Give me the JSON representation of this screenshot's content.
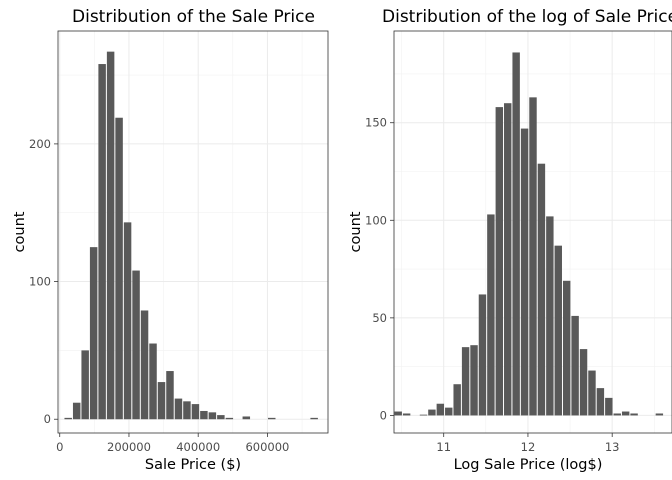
{
  "chart_data": [
    {
      "type": "bar",
      "title": "Distribution of the Sale Price",
      "xlabel": "Sale Price ($)",
      "ylabel": "count",
      "xlim": [
        -5000,
        775000
      ],
      "ylim": [
        -10,
        282
      ],
      "x_ticks": [
        0,
        200000,
        400000,
        600000
      ],
      "x_tick_labels": [
        "0",
        "200000",
        "400000",
        "600000"
      ],
      "y_ticks": [
        0,
        100,
        200
      ],
      "y_tick_labels": [
        "0",
        "100",
        "200"
      ],
      "bin_width": 24500,
      "x": [
        24500,
        49000,
        73500,
        98000,
        122500,
        147000,
        171500,
        196000,
        220500,
        245000,
        269500,
        294000,
        318500,
        343000,
        367500,
        392000,
        416500,
        441000,
        465500,
        490000,
        539000,
        612500,
        735000
      ],
      "values": [
        1,
        12,
        50,
        125,
        258,
        267,
        219,
        143,
        108,
        79,
        55,
        27,
        35,
        15,
        13,
        11,
        6,
        5,
        3,
        1,
        2,
        1,
        1
      ],
      "bar_color": "#595959",
      "grid": true,
      "legend": "none"
    },
    {
      "type": "bar",
      "title": "Distribution of the log of Sale Price",
      "xlabel": "Log Sale Price (log$)",
      "ylabel": "count",
      "xlim": [
        10.41,
        13.71
      ],
      "ylim": [
        -9,
        197
      ],
      "x_ticks": [
        11,
        12,
        13
      ],
      "x_tick_labels": [
        "11",
        "12",
        "13"
      ],
      "y_ticks": [
        0,
        50,
        100,
        150
      ],
      "y_tick_labels": [
        "0",
        "50",
        "100",
        "150"
      ],
      "bin_width": 0.1,
      "x": [
        10.46,
        10.56,
        10.76,
        10.86,
        10.96,
        11.06,
        11.16,
        11.26,
        11.36,
        11.46,
        11.56,
        11.66,
        11.76,
        11.86,
        11.96,
        12.06,
        12.16,
        12.26,
        12.36,
        12.46,
        12.56,
        12.66,
        12.76,
        12.86,
        12.96,
        13.06,
        13.16,
        13.26,
        13.56
      ],
      "values": [
        2,
        1,
        0.4,
        3,
        6,
        4,
        16,
        35,
        36,
        62,
        103,
        158,
        160,
        186,
        147,
        163,
        129,
        102,
        87,
        69,
        51,
        34,
        23,
        14,
        9,
        1,
        2,
        1,
        1
      ],
      "bar_color": "#595959",
      "grid": true,
      "legend": "none"
    }
  ]
}
